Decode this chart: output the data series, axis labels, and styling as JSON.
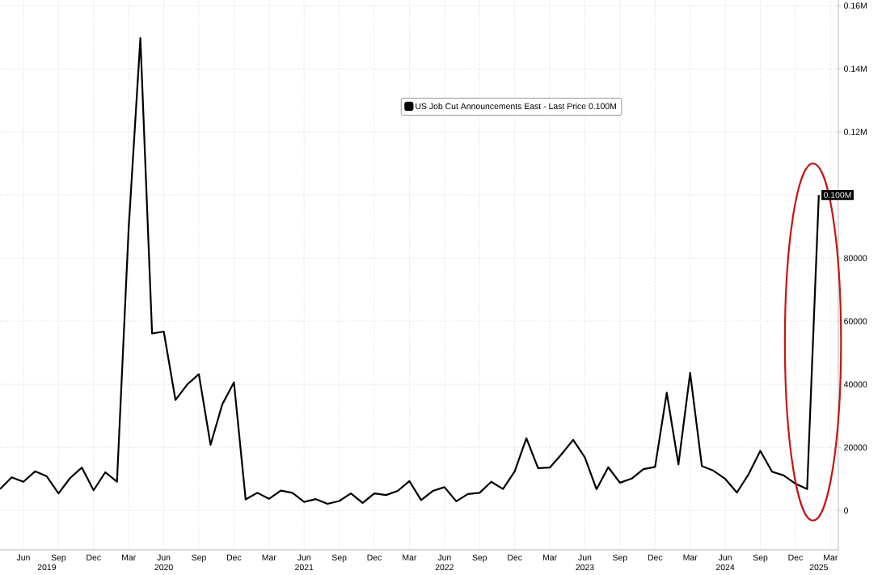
{
  "chart_data": {
    "type": "line",
    "x": [
      "2019-04",
      "2019-05",
      "2019-06",
      "2019-07",
      "2019-08",
      "2019-09",
      "2019-10",
      "2019-11",
      "2019-12",
      "2020-01",
      "2020-02",
      "2020-03",
      "2020-04",
      "2020-05",
      "2020-06",
      "2020-07",
      "2020-08",
      "2020-09",
      "2020-10",
      "2020-11",
      "2020-12",
      "2021-01",
      "2021-02",
      "2021-03",
      "2021-04",
      "2021-05",
      "2021-06",
      "2021-07",
      "2021-08",
      "2021-09",
      "2021-10",
      "2021-11",
      "2021-12",
      "2022-01",
      "2022-02",
      "2022-03",
      "2022-04",
      "2022-05",
      "2022-06",
      "2022-07",
      "2022-08",
      "2022-09",
      "2022-10",
      "2022-11",
      "2022-12",
      "2023-01",
      "2023-02",
      "2023-03",
      "2023-04",
      "2023-05",
      "2023-06",
      "2023-07",
      "2023-08",
      "2023-09",
      "2023-10",
      "2023-11",
      "2023-12",
      "2024-01",
      "2024-02",
      "2024-03",
      "2024-04",
      "2024-05",
      "2024-06",
      "2024-07",
      "2024-08",
      "2024-09",
      "2024-10",
      "2024-11",
      "2024-12",
      "2025-01",
      "2025-02"
    ],
    "series": [
      {
        "name": "US Job Cut Announcements East - Last Price 0.100M",
        "color": "#000000",
        "values": [
          6800,
          10500,
          9100,
          12400,
          10800,
          5400,
          10300,
          13600,
          6400,
          12100,
          9100,
          89500,
          149700,
          56100,
          56700,
          35000,
          39900,
          43200,
          20800,
          33600,
          40600,
          3500,
          5600,
          3700,
          6300,
          5600,
          2700,
          3600,
          2100,
          3000,
          5400,
          2400,
          5400,
          4900,
          6200,
          9300,
          3300,
          6200,
          7400,
          2900,
          5200,
          5600,
          9100,
          6800,
          12400,
          22900,
          13400,
          13600,
          17800,
          22400,
          16800,
          6700,
          13700,
          8800,
          10100,
          13100,
          13800,
          37300,
          14600,
          43600,
          14100,
          12600,
          10000,
          5700,
          11500,
          18900,
          12300,
          11100,
          8500,
          6800,
          100000
        ],
        "value_labels": [
          null,
          null,
          null,
          null,
          null,
          null,
          null,
          null,
          null,
          null,
          null,
          null,
          null,
          null,
          null,
          null,
          null,
          null,
          null,
          null,
          null,
          null,
          null,
          null,
          null,
          null,
          null,
          null,
          null,
          null,
          null,
          null,
          null,
          null,
          null,
          null,
          null,
          null,
          null,
          null,
          null,
          null,
          null,
          null,
          null,
          null,
          null,
          null,
          null,
          null,
          null,
          null,
          null,
          null,
          null,
          null,
          null,
          null,
          null,
          null,
          null,
          null,
          null,
          null,
          null,
          null,
          null,
          null,
          null,
          null,
          "0.100M"
        ]
      }
    ],
    "xlim": [
      "2019-04",
      "2025-03-21"
    ],
    "xticks": [
      {
        "value": "2019-06",
        "label": "Jun"
      },
      {
        "value": "2019-09",
        "label": "Sep"
      },
      {
        "value": "2019-12",
        "label": "Dec"
      },
      {
        "value": "2020-03",
        "label": "Mar"
      },
      {
        "value": "2020-06",
        "label": "Jun"
      },
      {
        "value": "2020-09",
        "label": "Sep"
      },
      {
        "value": "2020-12",
        "label": "Dec"
      },
      {
        "value": "2021-03",
        "label": "Mar"
      },
      {
        "value": "2021-06",
        "label": "Jun"
      },
      {
        "value": "2021-09",
        "label": "Sep"
      },
      {
        "value": "2021-12",
        "label": "Dec"
      },
      {
        "value": "2022-03",
        "label": "Mar"
      },
      {
        "value": "2022-06",
        "label": "Jun"
      },
      {
        "value": "2022-09",
        "label": "Sep"
      },
      {
        "value": "2022-12",
        "label": "Dec"
      },
      {
        "value": "2023-03",
        "label": "Mar"
      },
      {
        "value": "2023-06",
        "label": "Jun"
      },
      {
        "value": "2023-09",
        "label": "Sep"
      },
      {
        "value": "2023-12",
        "label": "Dec"
      },
      {
        "value": "2024-03",
        "label": "Mar"
      },
      {
        "value": "2024-06",
        "label": "Jun"
      },
      {
        "value": "2024-09",
        "label": "Sep"
      },
      {
        "value": "2024-12",
        "label": "Dec"
      },
      {
        "value": "2025-03",
        "label": "Mar"
      }
    ],
    "x2lim": [
      "2019-04",
      "2025-03-21"
    ],
    "x2ticks": [
      {
        "value": "2019-08",
        "label": "2019"
      },
      {
        "value": "2020-06",
        "label": "2020"
      },
      {
        "value": "2021-06",
        "label": "2021"
      },
      {
        "value": "2022-06",
        "label": "2022"
      },
      {
        "value": "2023-06",
        "label": "2023"
      },
      {
        "value": "2024-06",
        "label": "2024"
      },
      {
        "value": "2025-02",
        "label": "2025"
      }
    ],
    "ylim": [
      -12500,
      161800
    ],
    "yticks": [
      0,
      20000,
      40000,
      60000,
      80000,
      {
        "value": 100000,
        "label": null
      },
      {
        "value": 120000,
        "label": "0.12M"
      },
      {
        "value": 140000,
        "label": "0.14M"
      },
      {
        "value": 160000,
        "label": "0.16M"
      }
    ],
    "grid": true,
    "legend": "top",
    "marker": "none",
    "line_style": "solid"
  }
}
